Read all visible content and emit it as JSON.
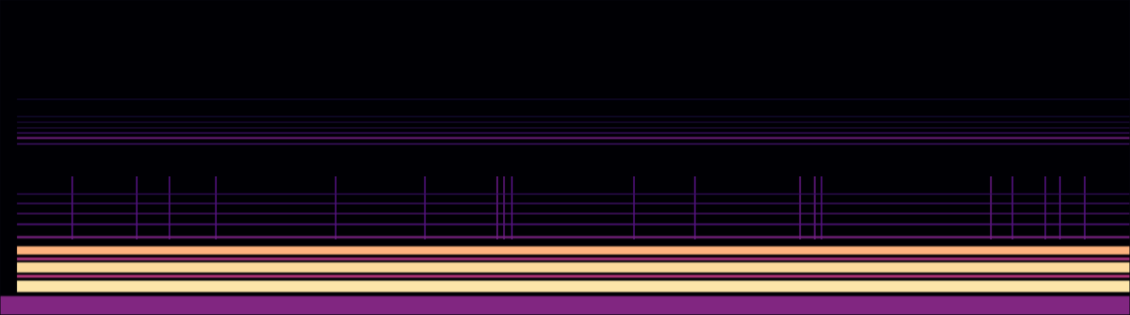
{
  "chart_data": {
    "type": "spectrogram",
    "tick_labels": false,
    "xlim": [
      0,
      100
    ],
    "ylim": [
      0,
      100
    ],
    "zlim": [
      0,
      1
    ],
    "onset": 1.5,
    "floor": {
      "y0": 0,
      "y1": 6,
      "level": 0.45
    },
    "lines": [
      {
        "y": 20.5,
        "width": 2.6,
        "level": 0.93
      },
      {
        "y": 15.1,
        "width": 3.2,
        "level": 0.97
      },
      {
        "y": 9.1,
        "width": 3.6,
        "level": 0.98
      },
      {
        "y": 17.8,
        "width": 0.9,
        "level": 0.55
      },
      {
        "y": 12.3,
        "width": 0.9,
        "level": 0.6
      },
      {
        "y": 24.7,
        "width": 0.7,
        "level": 0.42
      },
      {
        "y": 28.8,
        "width": 0.5,
        "level": 0.3
      },
      {
        "y": 32.2,
        "width": 0.4,
        "level": 0.32
      },
      {
        "y": 35.4,
        "width": 0.4,
        "level": 0.28
      },
      {
        "y": 38.4,
        "width": 0.4,
        "level": 0.22
      },
      {
        "y": 56.2,
        "width": 0.6,
        "level": 0.4
      },
      {
        "y": 54.3,
        "width": 0.4,
        "level": 0.28
      },
      {
        "y": 57.8,
        "width": 0.4,
        "level": 0.26
      },
      {
        "y": 59.4,
        "width": 0.3,
        "level": 0.2
      },
      {
        "y": 61.2,
        "width": 0.3,
        "level": 0.18
      },
      {
        "y": 63.0,
        "width": 0.3,
        "level": 0.15
      },
      {
        "y": 68.5,
        "width": 0.3,
        "level": 0.14
      }
    ],
    "bursts": [
      {
        "x": 6.4,
        "y0": 24,
        "y1": 44,
        "level": 0.3
      },
      {
        "x": 12.1,
        "y0": 24,
        "y1": 44,
        "level": 0.3
      },
      {
        "x": 15.0,
        "y0": 24,
        "y1": 44,
        "level": 0.3
      },
      {
        "x": 19.1,
        "y0": 24,
        "y1": 44,
        "level": 0.3
      },
      {
        "x": 29.7,
        "y0": 24,
        "y1": 44,
        "level": 0.3
      },
      {
        "x": 37.6,
        "y0": 24,
        "y1": 44,
        "level": 0.3
      },
      {
        "x": 44.0,
        "y0": 24,
        "y1": 44,
        "level": 0.35
      },
      {
        "x": 44.6,
        "y0": 24,
        "y1": 44,
        "level": 0.35
      },
      {
        "x": 45.3,
        "y0": 24,
        "y1": 44,
        "level": 0.3
      },
      {
        "x": 56.1,
        "y0": 24,
        "y1": 44,
        "level": 0.3
      },
      {
        "x": 61.5,
        "y0": 24,
        "y1": 44,
        "level": 0.3
      },
      {
        "x": 70.8,
        "y0": 24,
        "y1": 44,
        "level": 0.35
      },
      {
        "x": 72.1,
        "y0": 24,
        "y1": 44,
        "level": 0.35
      },
      {
        "x": 72.7,
        "y0": 24,
        "y1": 44,
        "level": 0.3
      },
      {
        "x": 87.7,
        "y0": 24,
        "y1": 44,
        "level": 0.35
      },
      {
        "x": 89.6,
        "y0": 24,
        "y1": 44,
        "level": 0.3
      },
      {
        "x": 92.5,
        "y0": 24,
        "y1": 44,
        "level": 0.3
      },
      {
        "x": 93.8,
        "y0": 24,
        "y1": 44,
        "level": 0.3
      },
      {
        "x": 96.0,
        "y0": 24,
        "y1": 44,
        "level": 0.3
      }
    ]
  }
}
